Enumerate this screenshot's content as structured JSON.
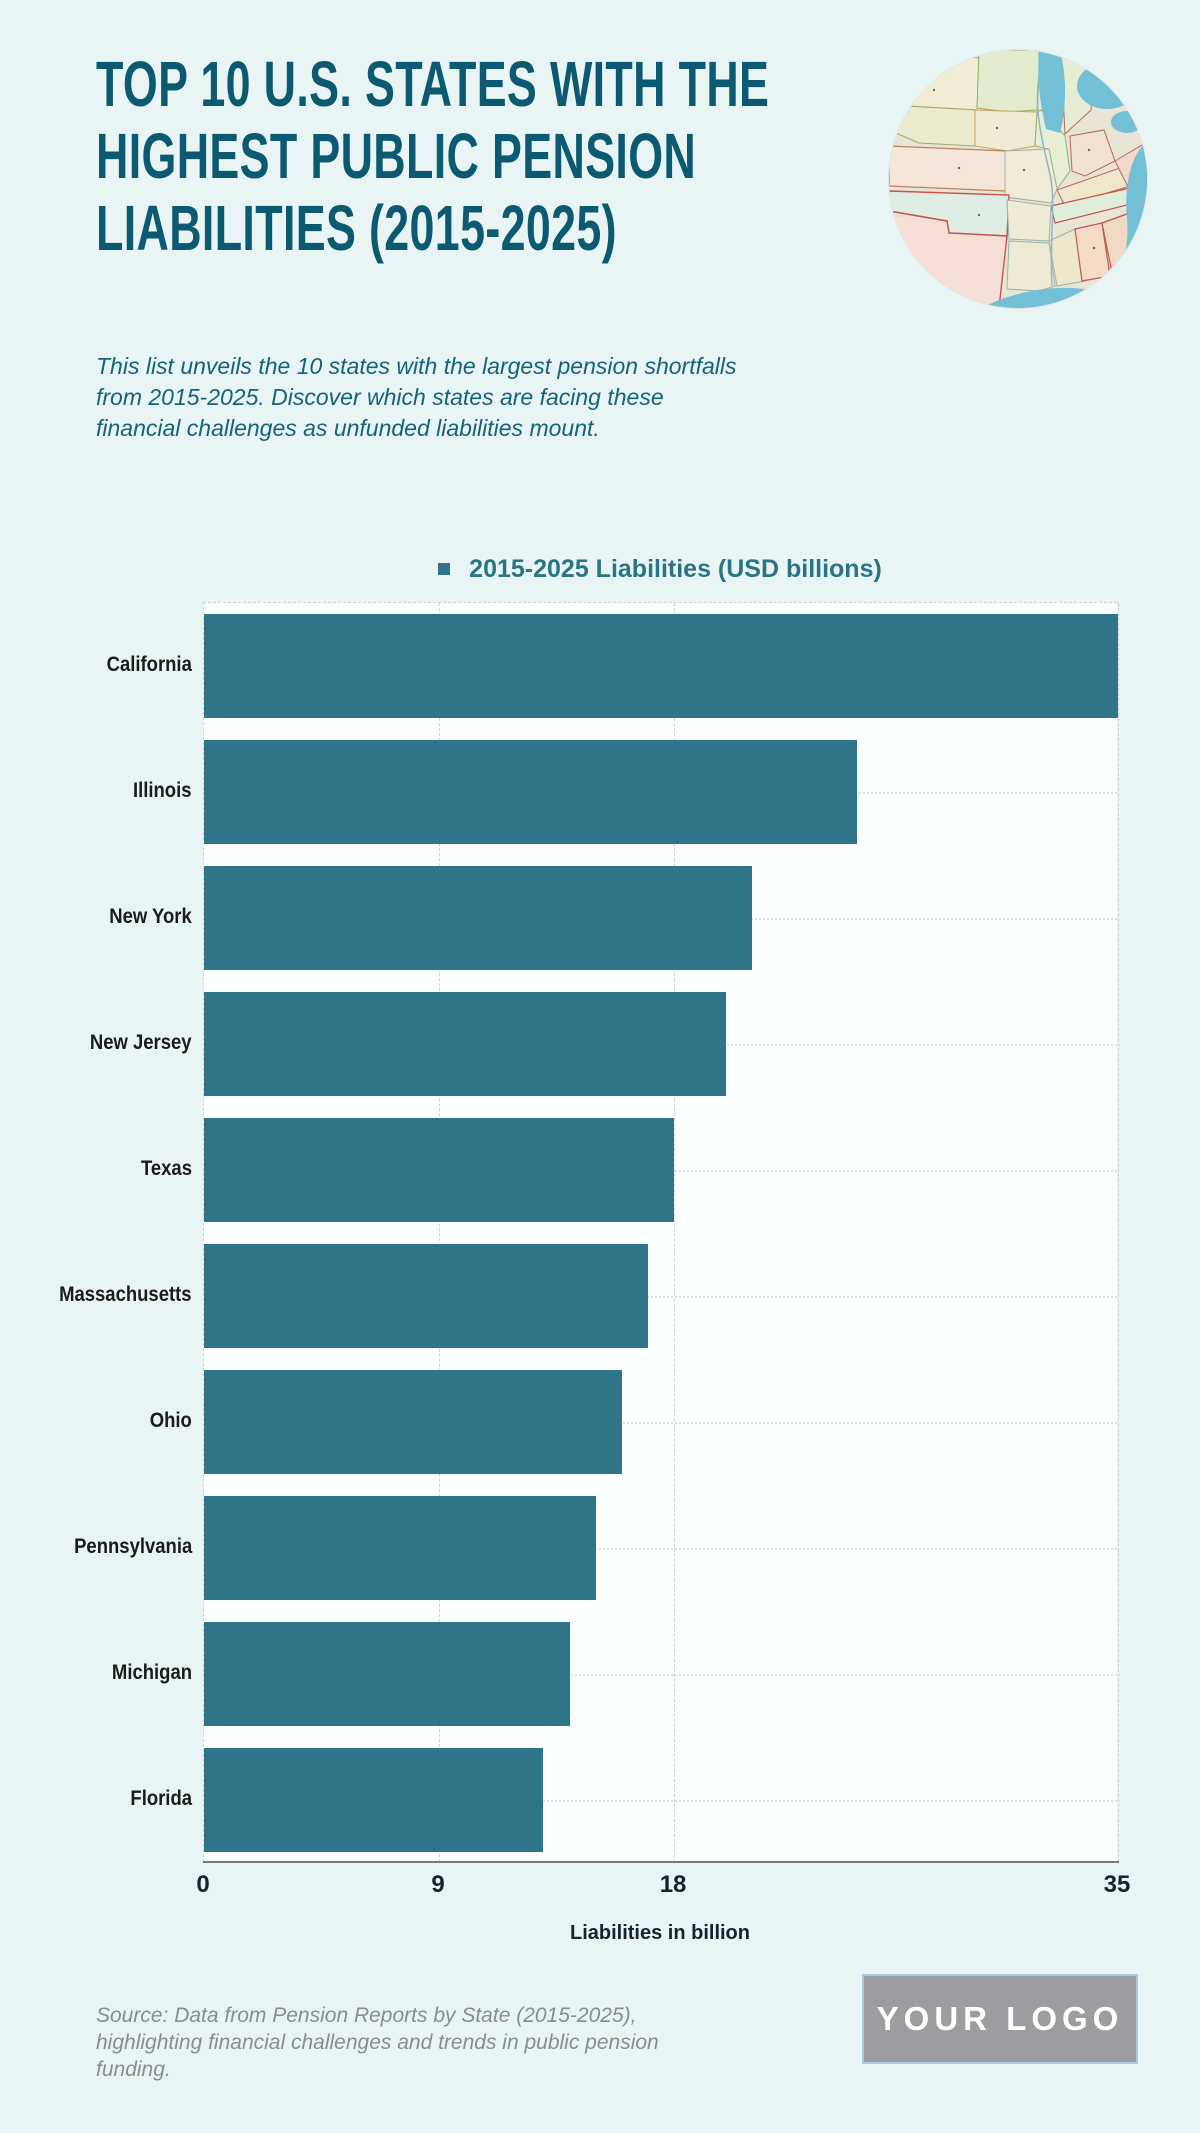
{
  "header": {
    "title": "TOP 10 U.S. STATES WITH THE\nHIGHEST PUBLIC PENSION\nLIABILITIES (2015-2025)",
    "subtitle": "This list unveils the 10 states with the largest pension shortfalls\nfrom 2015-2025. Discover which states are facing these\nfinancial challenges as unfunded liabilities mount.",
    "map_image": "circular-vintage-us-map"
  },
  "chart_data": {
    "type": "bar",
    "orientation": "horizontal",
    "legend": "2015-2025 Liabilities (USD billions)",
    "categories": [
      "California",
      "Illinois",
      "New York",
      "New Jersey",
      "Texas",
      "Massachusetts",
      "Ohio",
      "Pennsylvania",
      "Michigan",
      "Florida"
    ],
    "values": [
      35,
      25,
      21,
      20,
      18,
      17,
      16,
      15,
      14,
      13
    ],
    "xlabel": "Liabilities in billion",
    "xticks": [
      0,
      9,
      18,
      35
    ],
    "xlim": [
      0,
      35
    ],
    "grid": true,
    "legend_position": "top-center",
    "bar_color": "#2F7587"
  },
  "footer": {
    "source": "Source: Data from Pension Reports by State (2015-2025),\nhighlighting financial challenges and trends in public pension\nfunding.",
    "logo_label": "YOUR LOGO"
  },
  "colors": {
    "page_bg": "#E9F5F4",
    "plot_bg": "#FBFEFE",
    "bar": "#2F7587",
    "title": "#0C5A71",
    "subtitle": "#14637A",
    "legend_text": "#2A7486",
    "axis_text": "#16222E",
    "source_text": "#8A8D8F",
    "logo_bg": "#9B9DA0",
    "logo_border": "#ABC8DB"
  }
}
